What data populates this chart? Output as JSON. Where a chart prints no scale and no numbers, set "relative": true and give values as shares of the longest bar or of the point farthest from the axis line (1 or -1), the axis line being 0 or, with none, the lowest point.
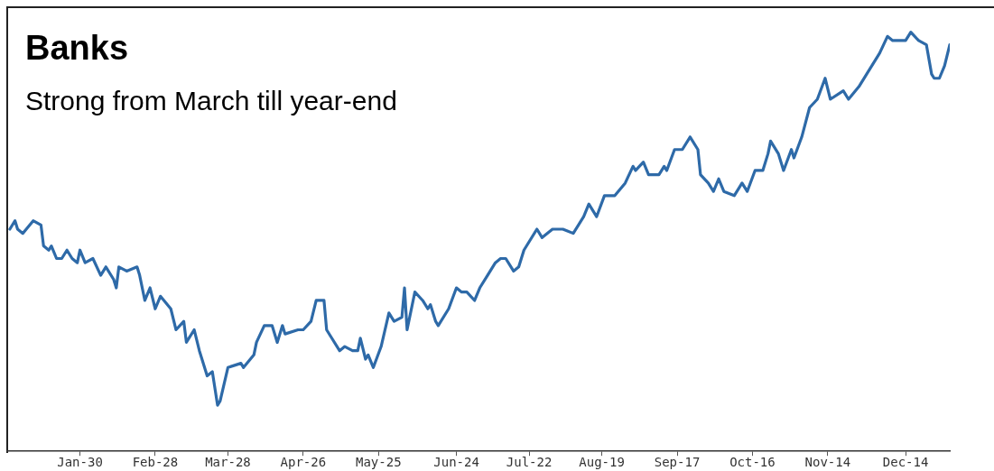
{
  "chart_data": {
    "type": "line",
    "title": "Banks",
    "subtitle": "Strong from March till year-end",
    "relative": true,
    "x": [
      "--01-03",
      "--01-05",
      "--01-06",
      "--01-08",
      "--01-12",
      "--01-15",
      "--01-16",
      "--01-18",
      "--01-19",
      "--01-21",
      "--01-23",
      "--01-25",
      "--01-27",
      "--01-29",
      "--01-30",
      "--02-01",
      "--02-04",
      "--02-07",
      "--02-09",
      "--02-12",
      "--02-13",
      "--02-14",
      "--02-17",
      "--02-21",
      "--02-22",
      "--02-24",
      "--02-26",
      "--02-28",
      "--03-02",
      "--03-06",
      "--03-08",
      "--03-11",
      "--03-12",
      "--03-15",
      "--03-17",
      "--03-20",
      "--03-22",
      "--03-24",
      "--03-25",
      "--03-28",
      "--04-02",
      "--04-03",
      "--04-07",
      "--04-08",
      "--04-11",
      "--04-14",
      "--04-16",
      "--04-18",
      "--04-19",
      "--04-24",
      "--04-26",
      "--04-29",
      "--05-01",
      "--05-04",
      "--05-05",
      "--05-07",
      "--05-10",
      "--05-12",
      "--05-15",
      "--05-17",
      "--05-18",
      "--05-20",
      "--05-21",
      "--05-23",
      "--05-26",
      "--05-29",
      "--05-31",
      "--06-03",
      "--06-04",
      "--06-05",
      "--06-08",
      "--06-11",
      "--06-13",
      "--06-14",
      "--06-16",
      "--06-17",
      "--06-21",
      "--06-24",
      "--06-26",
      "--06-28",
      "--07-01",
      "--07-03",
      "--07-06",
      "--07-09",
      "--07-11",
      "--07-13",
      "--07-16",
      "--07-18",
      "--07-20",
      "--07-25",
      "--07-27",
      "--07-31",
      "--08-04",
      "--08-08",
      "--08-12",
      "--08-14",
      "--08-17",
      "--08-20",
      "--08-24",
      "--08-28",
      "--08-31",
      "--09-01",
      "--09-04",
      "--09-06",
      "--09-10",
      "--09-12",
      "--09-13",
      "--09-16",
      "--09-19",
      "--09-22",
      "--09-25",
      "--09-26",
      "--09-29",
      "--10-01",
      "--10-03",
      "--10-05",
      "--10-09",
      "--10-12",
      "--10-14",
      "--10-17",
      "--10-20",
      "--10-22",
      "--10-23",
      "--10-26",
      "--10-28",
      "--10-31",
      "--11-01",
      "--11-04",
      "--11-07",
      "--11-10",
      "--11-13",
      "--11-15",
      "--11-20",
      "--11-22",
      "--11-26",
      "--11-29",
      "--12-04",
      "--12-07",
      "--12-09",
      "--12-14",
      "--12-16",
      "--12-19",
      "--12-22",
      "--12-24",
      "--12-25",
      "--12-27",
      "--12-29",
      "--12-31"
    ],
    "series": [
      {
        "color": "#2e6aa8",
        "values": [
          0.53,
          0.55,
          0.53,
          0.52,
          0.55,
          0.54,
          0.49,
          0.48,
          0.49,
          0.46,
          0.46,
          0.48,
          0.46,
          0.45,
          0.48,
          0.45,
          0.46,
          0.42,
          0.44,
          0.41,
          0.39,
          0.44,
          0.43,
          0.44,
          0.42,
          0.36,
          0.39,
          0.34,
          0.37,
          0.34,
          0.29,
          0.31,
          0.26,
          0.29,
          0.24,
          0.18,
          0.19,
          0.11,
          0.12,
          0.2,
          0.21,
          0.2,
          0.23,
          0.26,
          0.3,
          0.3,
          0.26,
          0.3,
          0.28,
          0.29,
          0.29,
          0.31,
          0.36,
          0.36,
          0.29,
          0.27,
          0.24,
          0.25,
          0.24,
          0.24,
          0.27,
          0.22,
          0.23,
          0.2,
          0.25,
          0.33,
          0.31,
          0.32,
          0.39,
          0.29,
          0.38,
          0.36,
          0.34,
          0.35,
          0.31,
          0.3,
          0.34,
          0.39,
          0.38,
          0.38,
          0.36,
          0.39,
          0.42,
          0.45,
          0.46,
          0.46,
          0.43,
          0.44,
          0.48,
          0.53,
          0.51,
          0.53,
          0.53,
          0.52,
          0.56,
          0.59,
          0.56,
          0.61,
          0.61,
          0.64,
          0.68,
          0.67,
          0.69,
          0.66,
          0.66,
          0.68,
          0.67,
          0.72,
          0.72,
          0.75,
          0.72,
          0.66,
          0.64,
          0.62,
          0.65,
          0.62,
          0.61,
          0.64,
          0.62,
          0.67,
          0.67,
          0.71,
          0.74,
          0.71,
          0.67,
          0.72,
          0.7,
          0.75,
          0.82,
          0.84,
          0.89,
          0.84,
          0.86,
          0.84,
          0.87,
          0.9,
          0.95,
          0.99,
          0.98,
          0.98,
          1,
          0.98,
          0.97,
          0.9,
          0.89,
          0.89,
          0.92,
          0.97
        ]
      }
    ],
    "xlim": [
      "--01-02",
      "--12-31"
    ],
    "xticks": [
      {
        "value": "--01-30",
        "label": "Jan-30"
      },
      {
        "value": "--02-28",
        "label": "Feb-28"
      },
      {
        "value": "--03-28",
        "label": "Mar-28"
      },
      {
        "value": "--04-26",
        "label": "Apr-26"
      },
      {
        "value": "--05-25",
        "label": "May-25"
      },
      {
        "value": "--06-24",
        "label": "Jun-24"
      },
      {
        "value": "--07-22",
        "label": "Jul-22"
      },
      {
        "value": "--08-19",
        "label": "Aug-19"
      },
      {
        "value": "--09-17",
        "label": "Sep-17"
      },
      {
        "value": "--10-16",
        "label": "Oct-16"
      },
      {
        "value": "--11-14",
        "label": "Nov-14"
      },
      {
        "value": "--12-14",
        "label": "Dec-14"
      }
    ]
  }
}
